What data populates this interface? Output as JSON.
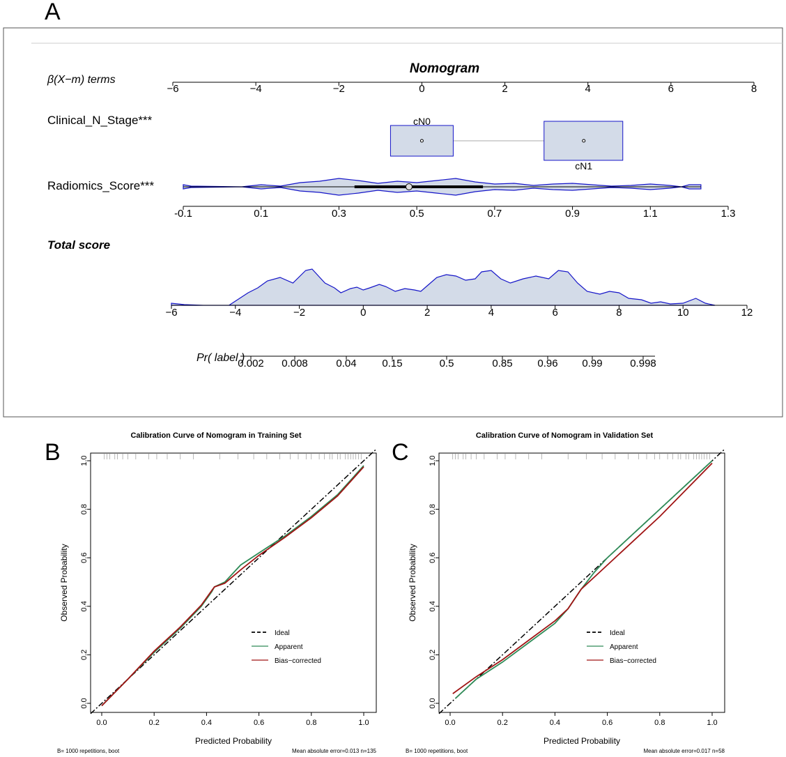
{
  "panel_letters": {
    "a": "A",
    "b": "B",
    "c": "C"
  },
  "colors": {
    "violin_fill": "#d3dbe8",
    "violin_stroke": "#1414c8",
    "apparent": "#2e8b57",
    "bias_corrected": "#a01414",
    "ideal": "#000000"
  },
  "chart_data": [
    {
      "type": "nomogram",
      "title": "Nomogram",
      "beta_label": "β(X−m) terms",
      "beta_axis": {
        "range": [
          -6,
          8
        ],
        "ticks": [
          -6,
          -4,
          -2,
          0,
          2,
          4,
          6,
          8
        ]
      },
      "variables": [
        {
          "name": "Clinical_N_Stage***",
          "levels": [
            {
              "label": "cN0",
              "beta": 0.0
            },
            {
              "label": "cN1",
              "beta": 3.9
            }
          ]
        },
        {
          "name": "Radiomics_Score***",
          "axis_ticks": [
            "-0.1",
            "0.1",
            "0.3",
            "0.5",
            "0.7",
            "0.9",
            "1.1",
            "1.3"
          ],
          "median": 0.48,
          "iqr": [
            0.34,
            0.67
          ],
          "range": [
            -0.1,
            1.23
          ]
        }
      ],
      "total_score": {
        "label": "Total score",
        "axis": {
          "range": [
            -6,
            12
          ],
          "ticks": [
            -6,
            -4,
            -2,
            0,
            2,
            4,
            6,
            8,
            10,
            12
          ]
        }
      },
      "probability": {
        "label": "Pr( label )",
        "ticks": [
          "0.002",
          "0.008",
          "0.04",
          "0.15",
          "0.5",
          "0.85",
          "0.96",
          "0.99",
          "0.998"
        ]
      }
    },
    {
      "type": "line",
      "title": "Calibration Curve of Nomogram in Training Set",
      "xlabel": "Predicted Probability",
      "ylabel": "Observed Probability",
      "xlim": [
        0,
        1
      ],
      "ylim": [
        0,
        1
      ],
      "ticks": [
        "0.0",
        "0.2",
        "0.4",
        "0.6",
        "0.8",
        "1.0"
      ],
      "legend": [
        "Ideal",
        "Apparent",
        "Bias−corrected"
      ],
      "footer_left": "B= 1000 repetitions, boot",
      "footer_right": "Mean absolute error=0.013 n=135",
      "series": [
        {
          "name": "Apparent",
          "x": [
            0.0,
            0.1,
            0.2,
            0.3,
            0.38,
            0.42,
            0.43,
            0.47,
            0.53,
            0.6,
            0.7,
            0.8,
            0.9,
            1.0
          ],
          "y": [
            -0.01,
            0.1,
            0.21,
            0.31,
            0.4,
            0.46,
            0.48,
            0.5,
            0.57,
            0.62,
            0.69,
            0.77,
            0.86,
            0.98
          ]
        },
        {
          "name": "Bias−corrected",
          "x": [
            0.0,
            0.1,
            0.2,
            0.3,
            0.38,
            0.42,
            0.43,
            0.47,
            0.53,
            0.6,
            0.7,
            0.8,
            0.9,
            1.0
          ],
          "y": [
            -0.01,
            0.1,
            0.215,
            0.315,
            0.405,
            0.465,
            0.48,
            0.495,
            0.55,
            0.61,
            0.685,
            0.765,
            0.855,
            0.975
          ]
        }
      ]
    },
    {
      "type": "line",
      "title": "Calibration Curve of Nomogram in Validation Set",
      "xlabel": "Predicted Probability",
      "ylabel": "Observed Probability",
      "xlim": [
        0,
        1
      ],
      "ylim": [
        0,
        1
      ],
      "ticks": [
        "0.0",
        "0.2",
        "0.4",
        "0.6",
        "0.8",
        "1.0"
      ],
      "legend": [
        "Ideal",
        "Apparent",
        "Bias−corrected"
      ],
      "footer_left": "B= 1000 repetitions, boot",
      "footer_right": "Mean absolute error=0.017 n=58",
      "series": [
        {
          "name": "Apparent",
          "x": [
            0.02,
            0.1,
            0.2,
            0.3,
            0.4,
            0.45,
            0.5,
            0.55,
            0.6,
            0.7,
            0.8,
            0.9,
            1.0
          ],
          "y": [
            0.02,
            0.1,
            0.17,
            0.25,
            0.33,
            0.39,
            0.47,
            0.54,
            0.6,
            0.7,
            0.8,
            0.9,
            1.0
          ]
        },
        {
          "name": "Bias−corrected",
          "x": [
            0.01,
            0.1,
            0.2,
            0.3,
            0.4,
            0.45,
            0.5,
            0.55,
            0.6,
            0.7,
            0.8,
            0.9,
            1.0
          ],
          "y": [
            0.04,
            0.11,
            0.18,
            0.26,
            0.34,
            0.39,
            0.47,
            0.52,
            0.57,
            0.67,
            0.77,
            0.88,
            0.99
          ]
        }
      ]
    }
  ]
}
